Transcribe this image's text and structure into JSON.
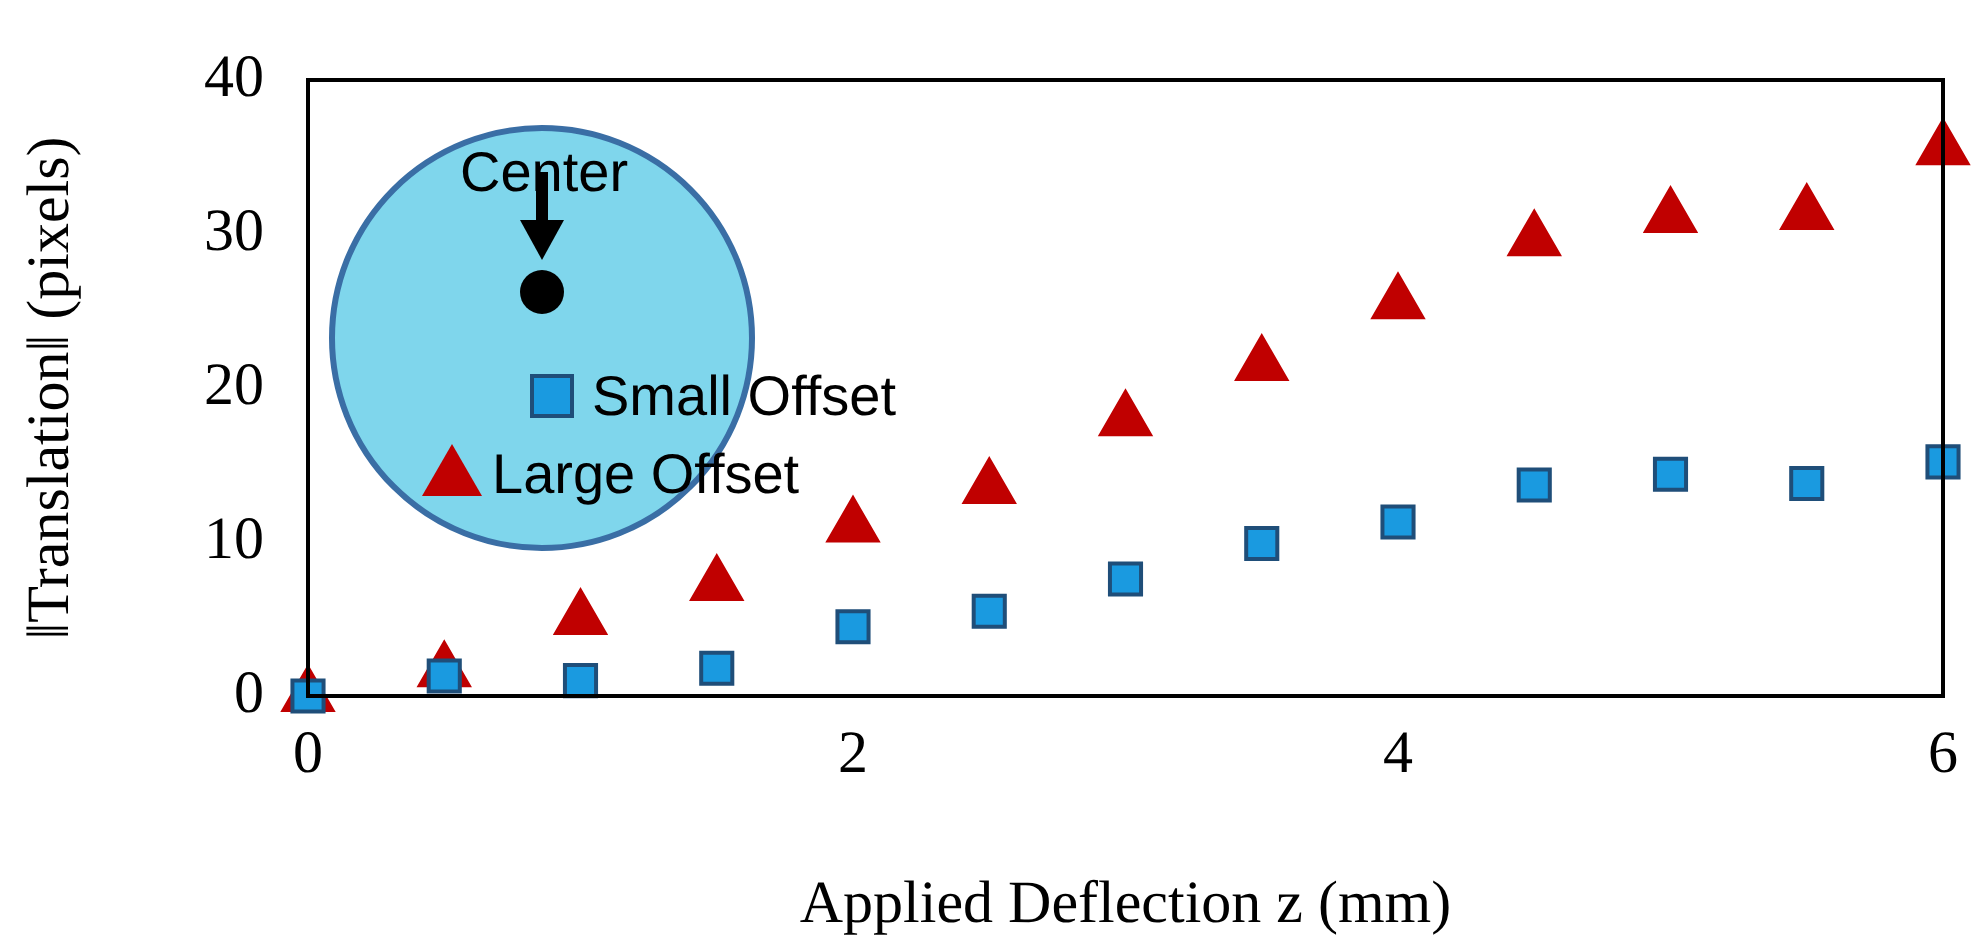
{
  "chart_data": {
    "type": "scatter",
    "xlabel": "Applied Deflection z (mm)",
    "ylabel": "‖Translation‖ (pixels)",
    "x": [
      0,
      0.5,
      1,
      1.5,
      2,
      2.5,
      3,
      3.5,
      4,
      4.5,
      5,
      5.5,
      6
    ],
    "series": [
      {
        "name": "Small Offset",
        "color": "#1a9ae0",
        "marker": "square",
        "values": [
          0,
          1.3,
          1.0,
          1.8,
          4.5,
          5.5,
          7.6,
          9.9,
          11.3,
          13.7,
          14.4,
          13.8,
          15.2
        ]
      },
      {
        "name": "Large Offset",
        "color": "#c00000",
        "marker": "triangle",
        "values": [
          0,
          1.6,
          5.0,
          7.2,
          11.0,
          13.5,
          17.9,
          21.5,
          25.5,
          29.6,
          31.1,
          31.3,
          35.5
        ]
      }
    ],
    "xlim": [
      0,
      6
    ],
    "xticks": [
      0,
      2,
      4,
      6
    ],
    "ylim": [
      0,
      40
    ],
    "yticks": [
      0,
      10,
      20,
      30,
      40
    ],
    "grid": false,
    "legend": "left",
    "annotations": [
      "Center"
    ]
  }
}
